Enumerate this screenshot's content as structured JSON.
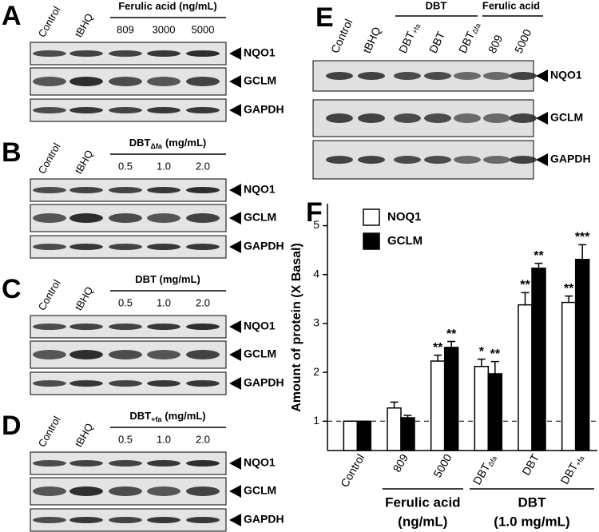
{
  "blots": [
    {
      "letter": "A",
      "header": {
        "text": "Ferulic acid (ng/mL)"
      },
      "lanes": [
        "Control",
        "tBHQ",
        "809",
        "3000",
        "5000"
      ],
      "proteins": [
        "NQO1",
        "GCLM",
        "GAPDH"
      ]
    },
    {
      "letter": "B",
      "header": {
        "text": "DBT",
        "sub": "Δfa",
        "unit": "(mg/mL)"
      },
      "lanes": [
        "Control",
        "tBHQ",
        "0.5",
        "1.0",
        "2.0"
      ],
      "proteins": [
        "NQO1",
        "GCLM",
        "GAPDH"
      ]
    },
    {
      "letter": "C",
      "header": {
        "text": "DBT (mg/mL)"
      },
      "lanes": [
        "Control",
        "tBHQ",
        "0.5",
        "1.0",
        "2.0"
      ],
      "proteins": [
        "NQO1",
        "GCLM",
        "GAPDH"
      ]
    },
    {
      "letter": "D",
      "header": {
        "text": "DBT",
        "sub": "+fa",
        "unit": "(mg/mL)"
      },
      "lanes": [
        "Control",
        "tBHQ",
        "0.5",
        "1.0",
        "2.0"
      ],
      "proteins": [
        "NQO1",
        "GCLM",
        "GAPDH"
      ]
    }
  ],
  "blot_e": {
    "letter": "E",
    "groups": [
      "DBT",
      "Ferulic acid"
    ],
    "lanes": [
      "Control",
      "tBHQ",
      "DBT",
      "DBT",
      "DBT",
      "809",
      "5000"
    ],
    "lane_subs": [
      null,
      null,
      "+fa",
      null,
      "Δfa",
      null,
      null
    ],
    "proteins": [
      "NQO1",
      "GCLM",
      "GAPDH"
    ]
  },
  "chart_data": {
    "type": "bar",
    "letter": "F",
    "ylabel": "Amount of protein  (X Basal)",
    "categories": [
      "Control",
      "809",
      "5000",
      "DBT",
      "DBT",
      "DBT"
    ],
    "category_subs": [
      null,
      null,
      null,
      "Δfa",
      null,
      "+fa"
    ],
    "groups": [
      [
        "Ferulic acid",
        "(ng/mL)"
      ],
      [
        "DBT",
        "(1.0 mg/mL)"
      ]
    ],
    "series": [
      {
        "name": "NOQ1",
        "color": "#ffffff",
        "values": [
          1,
          1.27,
          2.23,
          2.12,
          3.38,
          3.43
        ],
        "errors": [
          0,
          0.12,
          0.12,
          0.15,
          0.25,
          0.13
        ],
        "annotations": [
          null,
          null,
          "**",
          "*",
          "**",
          "**"
        ]
      },
      {
        "name": "GCLM",
        "color": "#000000",
        "values": [
          1,
          1.07,
          2.51,
          1.97,
          4.13,
          4.31
        ],
        "errors": [
          0,
          0.05,
          0.12,
          0.25,
          0.1,
          0.3
        ],
        "annotations": [
          null,
          null,
          "**",
          "**",
          "**",
          "***"
        ]
      }
    ],
    "baseline": 1,
    "ylim": [
      0.4,
      5.45
    ],
    "yticks": [
      1,
      2,
      3,
      4,
      5
    ]
  }
}
